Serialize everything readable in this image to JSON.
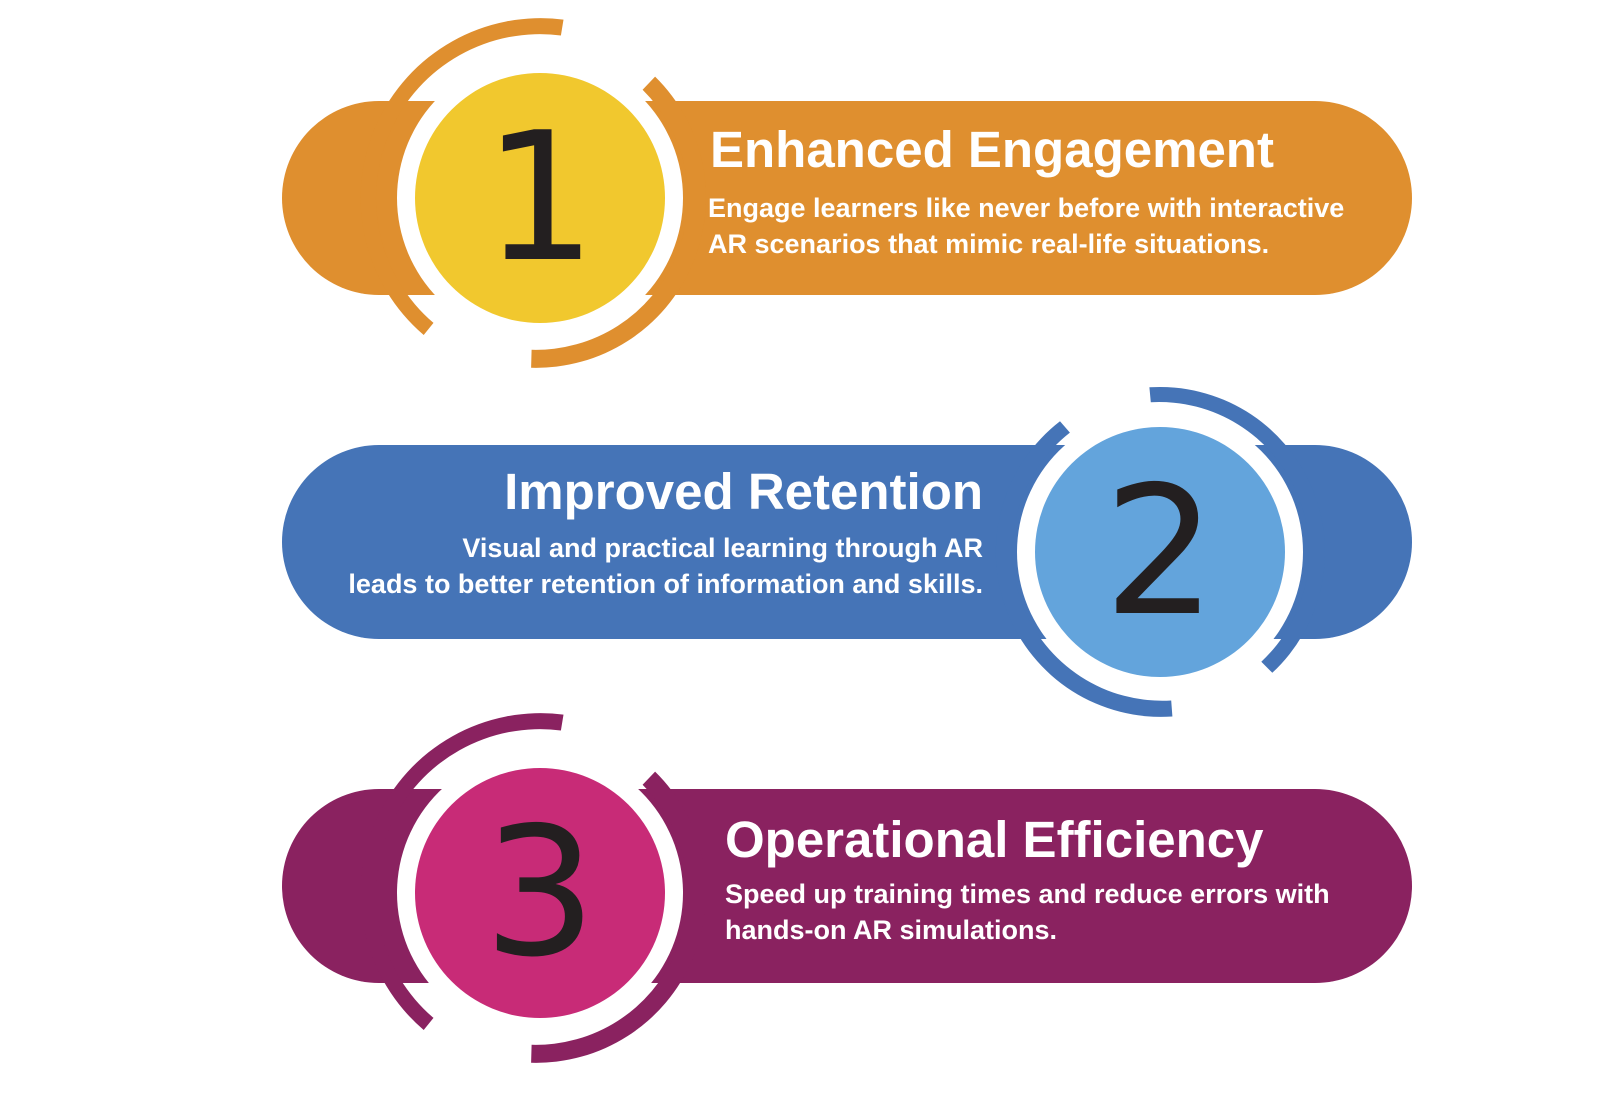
{
  "items": [
    {
      "number": "1",
      "title": "Enhanced Engagement",
      "desc_lines": [
        "Engage learners like never before with interactive",
        "AR scenarios that mimic real-life situations."
      ],
      "colors": {
        "pill": "#df8f2f",
        "circle": "#f1c82e"
      }
    },
    {
      "number": "2",
      "title": "Improved Retention",
      "desc_lines": [
        "Visual and practical learning through AR",
        "leads to better retention of information and skills."
      ],
      "colors": {
        "pill": "#4574b7",
        "circle": "#63a4dc"
      }
    },
    {
      "number": "3",
      "title": "Operational Efficiency",
      "desc_lines": [
        "Speed up training times and reduce errors with",
        "hands-on AR simulations."
      ],
      "colors": {
        "pill": "#8a2260",
        "circle": "#c82b77"
      }
    }
  ]
}
